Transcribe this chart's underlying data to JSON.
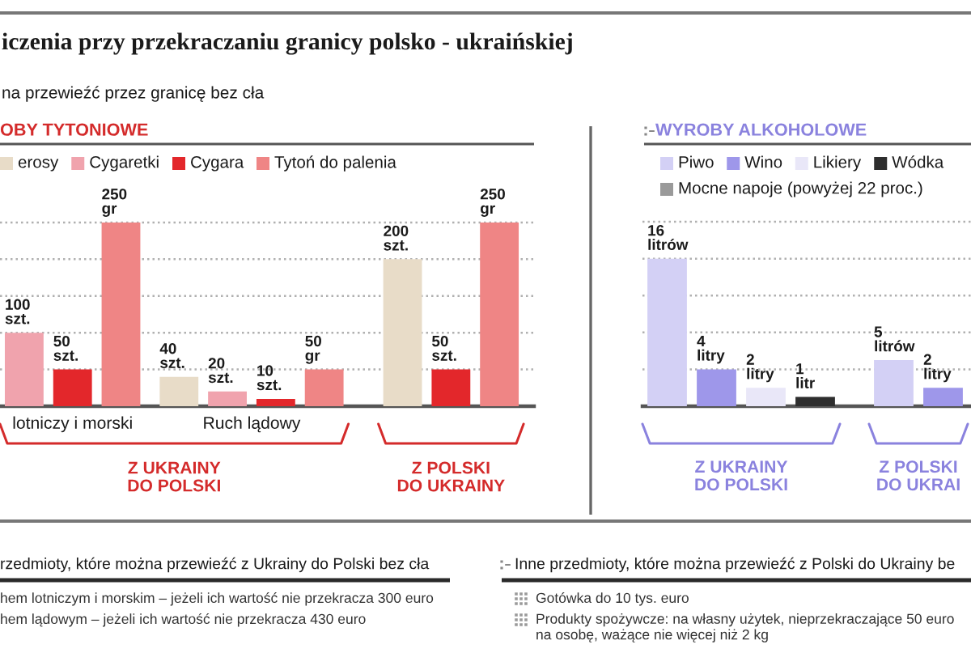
{
  "chart_data": [
    {
      "type": "bar",
      "title": "iczenia przy przekraczaniu granicy polsko - ukraińskiej",
      "subtitle": "na przewieźć przez granicę bez cła",
      "legend_title": "OBY TYTONIOWE",
      "legend": "top left",
      "categories": [
        "lotniczy i morski",
        "Ruch lądowy",
        null
      ],
      "series": [
        {
          "name": "erosy",
          "color": "#e8dcc8",
          "values": [
            null,
            40,
            200
          ],
          "value_labels": [
            null,
            "40\nszt.",
            "200\nszt."
          ]
        },
        {
          "name": "Cygaretki",
          "color": "#f0a3ad",
          "values": [
            100,
            20,
            null
          ],
          "value_labels": [
            "100\nszt.",
            "20\nszt.",
            null
          ]
        },
        {
          "name": "Cygara",
          "color": "#e3272b",
          "values": [
            50,
            10,
            50
          ],
          "value_labels": [
            "50\nszt.",
            "10\nszt.",
            "50\nszt."
          ]
        },
        {
          "name": "Tytoń do palenia",
          "color": "#ef8585",
          "values": [
            250,
            50,
            250
          ],
          "value_labels": [
            "250\ngr",
            "50\ngr",
            "250\ngr"
          ]
        }
      ],
      "grid": "y",
      "tick_labels": "x",
      "annotations": [
        "Z UKRAINY\nDO POLSKI",
        "Z POLSKI\nDO UKRAINY",
        "rzedmioty, które można przewieźć z Ukrainy do Polski bez cła",
        "hem lotniczym i morskim – jeżeli ich wartość nie przekracza 300 euro",
        "hem lądowym – jeżeli ich wartość nie przekracza 430 euro"
      ]
    },
    {
      "type": "bar",
      "legend_title": "WYROBY ALKOHOLOWE",
      "legend": "top left",
      "categories": [
        "Z UKRAINY\nDO POLSKI",
        "Z POLSKI\nDO UKRAI"
      ],
      "series": [
        {
          "name": "Piwo",
          "color": "#d3d0f5",
          "values": [
            16,
            5
          ],
          "value_labels": [
            "16\nlitrów",
            "5\nlitrów"
          ]
        },
        {
          "name": "Wino",
          "color": "#9e97ea",
          "values": [
            4,
            2
          ],
          "value_labels": [
            "4\nlitry",
            "2\nlitry"
          ]
        },
        {
          "name": "Likiery",
          "color": "#e9e7f8",
          "values": [
            2,
            null
          ],
          "value_labels": [
            "2\nlitry",
            null
          ]
        },
        {
          "name": "Wódka",
          "color": "#2e2e2e",
          "values": [
            1,
            null
          ],
          "value_labels": [
            "1\nlitr",
            null
          ]
        },
        {
          "name": "Mocne napoje (powyżej 22 proc.)",
          "color": "#9a9a9a",
          "values": [
            null,
            null
          ]
        }
      ],
      "grid": "y",
      "tick_labels": "x",
      "annotations": [
        "Inne przedmioty, które można przewieźć z Polski do Ukrainy be",
        "Gotówka do 10 tys. euro",
        "Produkty spożywcze: na własny użytek, nieprzekraczające 50 euro\nna osobę, ważące nie więcej niż 2 kg"
      ]
    }
  ]
}
